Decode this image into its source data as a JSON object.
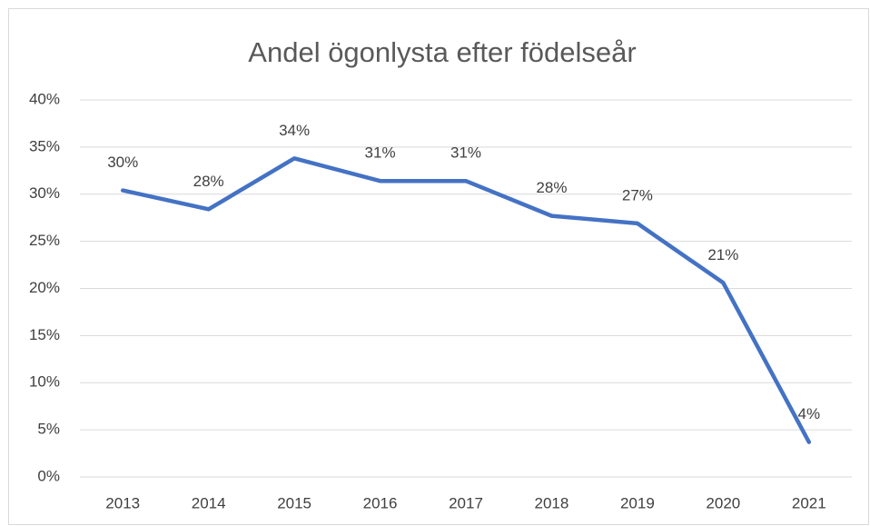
{
  "chart_data": {
    "type": "line",
    "title": "Andel ögonlysta efter födelseår",
    "categories": [
      "2013",
      "2014",
      "2015",
      "2016",
      "2017",
      "2018",
      "2019",
      "2020",
      "2021"
    ],
    "series": [
      {
        "color": "#4472c4",
        "values": [
          30.4,
          28.4,
          33.8,
          31.4,
          31.4,
          27.7,
          26.9,
          20.6,
          3.7
        ],
        "value_labels": [
          "30%",
          "28%",
          "34%",
          "31%",
          "31%",
          "28%",
          "27%",
          "21%",
          "4%"
        ]
      }
    ],
    "ylim": [
      0,
      40
    ],
    "yticks": [
      {
        "value": 0,
        "label": "0%"
      },
      {
        "value": 5,
        "label": "5%"
      },
      {
        "value": 10,
        "label": "10%"
      },
      {
        "value": 15,
        "label": "15%"
      },
      {
        "value": 20,
        "label": "20%"
      },
      {
        "value": 25,
        "label": "25%"
      },
      {
        "value": 30,
        "label": "30%"
      },
      {
        "value": 35,
        "label": "35%"
      },
      {
        "value": 40,
        "label": "40%"
      }
    ],
    "grid": true
  }
}
